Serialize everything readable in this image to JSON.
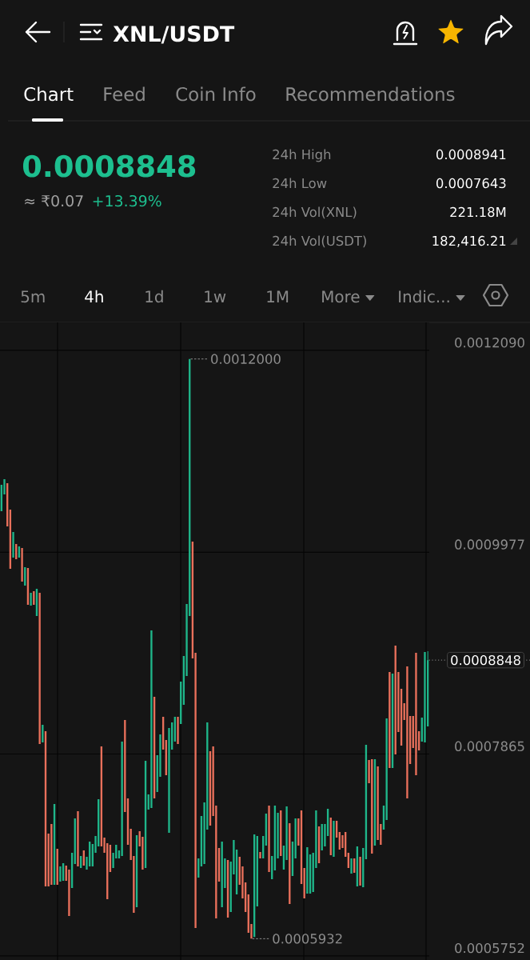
{
  "chart_data": {
    "type": "candlestick",
    "title": "XNL/USDT",
    "categories": [
      null,
      null,
      null,
      null,
      null,
      null,
      null,
      null,
      null,
      null,
      null,
      null,
      null,
      null,
      null,
      null,
      null,
      null,
      null,
      null,
      null,
      null,
      null,
      null,
      null,
      null,
      null,
      null,
      null,
      null,
      null,
      null,
      null,
      null,
      null,
      null,
      null,
      null,
      null,
      null,
      null,
      null,
      null,
      null,
      null,
      null,
      null,
      null,
      null,
      null,
      null,
      null,
      null,
      null,
      null,
      null,
      null,
      null,
      null,
      null,
      null,
      null,
      null,
      null,
      null,
      null,
      null,
      null,
      null,
      null,
      null,
      null,
      null,
      null,
      null,
      null,
      null,
      null,
      null,
      null,
      null,
      null,
      null,
      null,
      null,
      null,
      null,
      null,
      null,
      null,
      null,
      null,
      null,
      null,
      null,
      null,
      null,
      null,
      null,
      null,
      null,
      null,
      null,
      null,
      null,
      null,
      null,
      null,
      null,
      null,
      null,
      null,
      null,
      null,
      null,
      null,
      null,
      null,
      null,
      null,
      null,
      null,
      null,
      null,
      null,
      null,
      null,
      null,
      null,
      null,
      null,
      null,
      null,
      null,
      null,
      null,
      null,
      null,
      null,
      null,
      null,
      null,
      null,
      null,
      null,
      null
    ],
    "ohlc": [
      [
        0.0010407,
        0.0010683,
        0.0010407,
        0.0010683
      ],
      [
        0.0010583,
        0.0010742,
        0.0010583,
        0.0010742
      ],
      [
        0.00107,
        0.00107,
        0.0010248,
        0.0010248
      ],
      [
        0.0010424,
        0.0010424,
        0.0009804,
        0.0009804
      ],
      [
        0.0009921,
        0.0010189,
        0.0009921,
        0.0010189
      ],
      [
        0.0010063,
        0.0010063,
        0.0009904,
        0.0009904
      ],
      [
        0.0009921,
        0.0010038,
        0.0009921,
        0.0010038
      ],
      [
        0.0010022,
        0.0010022,
        0.000967,
        0.000967
      ],
      [
        0.0009628,
        0.0009821,
        0.0009628,
        0.0009821
      ],
      [
        0.0009812,
        0.0009812,
        0.0009427,
        0.0009427
      ],
      [
        0.0009419,
        0.0009553,
        0.0009419,
        0.0009553
      ],
      [
        0.0009569,
        0.0009569,
        0.0009427,
        0.0009427
      ],
      [
        0.000931,
        0.0009595,
        0.000931,
        0.0009595
      ],
      [
        0.0009553,
        0.0009553,
        0.000797,
        0.000797
      ],
      [
        0.0007987,
        0.0008171,
        0.0007987,
        0.0008171
      ],
      [
        0.0008104,
        0.0008104,
        0.0006479,
        0.0006479
      ],
      [
        0.0007032,
        0.0007032,
        0.0006479,
        0.0006479
      ],
      [
        0.0007133,
        0.0007133,
        0.0006496,
        0.0006496
      ],
      [
        0.0006496,
        0.0007342,
        0.0006496,
        0.0007342
      ],
      [
        0.0006873,
        0.0006873,
        0.0006496,
        0.0006496
      ],
      [
        0.000653,
        0.0006689,
        0.000653,
        0.0006689
      ],
      [
        0.0006538,
        0.0006722,
        0.0006538,
        0.0006722
      ],
      [
        0.0006697,
        0.0006697,
        0.0006538,
        0.0006538
      ],
      [
        0.0006655,
        0.0006655,
        0.000617,
        0.000617
      ],
      [
        0.0006463,
        0.0006831,
        0.0006463,
        0.0006831
      ],
      [
        0.0006714,
        0.0007191,
        0.0006714,
        0.0007191
      ],
      [
        0.0007267,
        0.0007267,
        0.0006689,
        0.0006689
      ],
      [
        0.0006672,
        0.0006798,
        0.0006672,
        0.0006798
      ],
      [
        0.0006856,
        0.0006856,
        0.0006697,
        0.0006697
      ],
      [
        0.0006655,
        0.0006789,
        0.0006655,
        0.0006789
      ],
      [
        0.0006689,
        0.0006948,
        0.0006689,
        0.0006948
      ],
      [
        0.0006689,
        0.0006923,
        0.0006689,
        0.0006923
      ],
      [
        0.0006831,
        0.0007007,
        0.0006831,
        0.0007007
      ],
      [
        0.0006898,
        0.0007392,
        0.0006898,
        0.0007392
      ],
      [
        0.0007945,
        0.0007945,
        0.0006898,
        0.0006898
      ],
      [
        0.000699,
        0.000699,
        0.0006831,
        0.0006831
      ],
      [
        0.0006932,
        0.0006932,
        0.0006345,
        0.0006345
      ],
      [
        0.0006915,
        0.0006915,
        0.000663,
        0.000663
      ],
      [
        0.0006672,
        0.0006831,
        0.0006672,
        0.0006831
      ],
      [
        0.0006772,
        0.0006915,
        0.0006772,
        0.0006915
      ],
      [
        0.0006772,
        0.0006856,
        0.0006772,
        0.0006856
      ],
      [
        0.0006798,
        0.0007995,
        0.0006798,
        0.0007995
      ],
      [
        0.0008221,
        0.0008221,
        0.0007258,
        0.0007258
      ],
      [
        0.00074,
        0.00074,
        0.0006915,
        0.0006915
      ],
      [
        0.0007082,
        0.0007082,
        0.0006756,
        0.0006756
      ],
      [
        0.0006798,
        0.0006798,
        0.0006203,
        0.0006203
      ],
      [
        0.0006262,
        0.0007015,
        0.0006262,
        0.0007015
      ],
      [
        0.0007057,
        0.0007057,
        0.0006898,
        0.0006898
      ],
      [
        0.0006999,
        0.0006999,
        0.0006655,
        0.0006655
      ],
      [
        0.0006672,
        0.0007794,
        0.0006672,
        0.0007794
      ],
      [
        0.0007283,
        0.0007442,
        0.0007283,
        0.0007442
      ],
      [
        0.00073,
        0.0009159,
        0.00073,
        0.0009159
      ],
      [
        0.0008464,
        0.0008464,
        0.00074,
        0.00074
      ],
      [
        0.0007468,
        0.0007853,
        0.0007468,
        0.0007853
      ],
      [
        0.0007627,
        0.000807,
        0.0007627,
        0.000807
      ],
      [
        0.0008255,
        0.0008255,
        0.0007911,
        0.0007911
      ],
      [
        0.0008012,
        0.0008012,
        0.0007643,
        0.0007643
      ],
      [
        0.000704,
        0.0008138,
        0.000704,
        0.0008138
      ],
      [
        0.0007911,
        0.0008196,
        0.0007911,
        0.0008196
      ],
      [
        0.0007995,
        0.0008255,
        0.0007995,
        0.0008255
      ],
      [
        0.0008255,
        0.0008255,
        0.000797,
        0.000797
      ],
      [
        0.0008179,
        0.0008623,
        0.0008179,
        0.0008623
      ],
      [
        0.000838,
        0.0008891,
        0.000838,
        0.0008891
      ],
      [
        0.0008682,
        0.0009435,
        0.0008682,
        0.0009435
      ],
      [
        0.000931,
        0.0012,
        0.000931,
        0.0012
      ],
      [
        0.0010089,
        0.0010089,
        0.0008866,
        0.0008866
      ],
      [
        0.0008925,
        0.0008925,
        0.0006044,
        0.0006044
      ],
      [
        0.0006572,
        0.0006772,
        0.0006572,
        0.0006772
      ],
      [
        0.0006689,
        0.0007216,
        0.0006689,
        0.0007216
      ],
      [
        0.0006714,
        0.0007359,
        0.0006714,
        0.0007359
      ],
      [
        0.0007074,
        0.0008196,
        0.0007074,
        0.0008196
      ],
      [
        0.0007895,
        0.0007895,
        0.0007116,
        0.0007116
      ],
      [
        0.0007945,
        0.0007945,
        0.0007216,
        0.0007216
      ],
      [
        0.0007325,
        0.0007325,
        0.0006144,
        0.0006144
      ],
      [
        0.0006881,
        0.0006881,
        0.000653,
        0.000653
      ],
      [
        0.0006262,
        0.0006948,
        0.0006262,
        0.0006948
      ],
      [
        0.0006463,
        0.0006772,
        0.0006463,
        0.0006772
      ],
      [
        0.0006756,
        0.0006756,
        0.0006153,
        0.0006153
      ],
      [
        0.0006211,
        0.0006739,
        0.0006211,
        0.0006739
      ],
      [
        0.0006605,
        0.0006965,
        0.0006605,
        0.0006965
      ],
      [
        0.0006396,
        0.0006865,
        0.0006396,
        0.0006865
      ],
      [
        0.0006789,
        0.0006789,
        0.0006496,
        0.0006496
      ],
      [
        0.0006689,
        0.0006689,
        0.0006354,
        0.0006354
      ],
      [
        0.0006521,
        0.0006521,
        0.0006211,
        0.0006211
      ],
      [
        0.0006396,
        0.0006396,
        0.0005994,
        0.0005994
      ],
      [
        0.0006086,
        0.0006086,
        0.0005932,
        0.0005932
      ],
      [
        0.000595,
        0.0007024,
        0.000595,
        0.0007024
      ],
      [
        0.000627,
        0.0007007,
        0.000627,
        0.0007007
      ],
      [
        0.000684,
        0.000684,
        0.0006772,
        0.0006772
      ],
      [
        0.0006772,
        0.0007007,
        0.0006772,
        0.0007007
      ],
      [
        0.0006907,
        0.0007241,
        0.0006907,
        0.0007241
      ],
      [
        0.0007325,
        0.0007325,
        0.000663,
        0.000663
      ],
      [
        0.0006555,
        0.0006798,
        0.0006555,
        0.0006798
      ],
      [
        0.0006647,
        0.0007325,
        0.0006647,
        0.0007325
      ],
      [
        0.0006772,
        0.000725,
        0.0006772,
        0.000725
      ],
      [
        0.0007275,
        0.0007275,
        0.0006798,
        0.0006798
      ],
      [
        0.0006655,
        0.0006907,
        0.0006655,
        0.0006907
      ],
      [
        0.0006756,
        0.0007317,
        0.0006756,
        0.0007317
      ],
      [
        0.0007141,
        0.0007141,
        0.0006295,
        0.0006295
      ],
      [
        0.0006588,
        0.0006948,
        0.0006588,
        0.0006948
      ],
      [
        0.0006772,
        0.0007191,
        0.0006772,
        0.0007191
      ],
      [
        0.0007191,
        0.0007191,
        0.0006907,
        0.0006907
      ],
      [
        0.0007275,
        0.0007275,
        0.0006505,
        0.0006505
      ],
      [
        0.0006672,
        0.0006672,
        0.0006354,
        0.0006354
      ],
      [
        0.0006404,
        0.000689,
        0.0006404,
        0.000689
      ],
      [
        0.0006404,
        0.0006814,
        0.0006404,
        0.0006814
      ],
      [
        0.0006421,
        0.0006831,
        0.0006421,
        0.0006831
      ],
      [
        0.0006672,
        0.0007275,
        0.0006672,
        0.0007275
      ],
      [
        0.0007108,
        0.0007108,
        0.0006722,
        0.0006722
      ],
      [
        0.0006856,
        0.0007133,
        0.0006856,
        0.0007133
      ],
      [
        0.0006898,
        0.0007133,
        0.0006898,
        0.0007133
      ],
      [
        0.0007007,
        0.0007292,
        0.0007007,
        0.0007292
      ],
      [
        0.00072,
        0.00072,
        0.0006806,
        0.0006806
      ],
      [
        0.0006789,
        0.0007166,
        0.0006789,
        0.0007166
      ],
      [
        0.0007166,
        0.0007166,
        0.000699,
        0.000699
      ],
      [
        0.0007049,
        0.0007049,
        0.0006865,
        0.0006865
      ],
      [
        0.0007015,
        0.0007015,
        0.0006881,
        0.0006881
      ],
      [
        0.0007049,
        0.0007049,
        0.0006789,
        0.0006789
      ],
      [
        0.0006831,
        0.0006831,
        0.0006672,
        0.0006672
      ],
      [
        0.0006613,
        0.0006772,
        0.0006613,
        0.0006772
      ],
      [
        0.0006772,
        0.0006772,
        0.0006622,
        0.0006622
      ],
      [
        0.0006479,
        0.0006898,
        0.0006479,
        0.0006898
      ],
      [
        0.0006789,
        0.0006789,
        0.0006488,
        0.0006488
      ],
      [
        0.0006471,
        0.0006881,
        0.0006471,
        0.0006881
      ],
      [
        0.0006764,
        0.0007962,
        0.0006764,
        0.0007962
      ],
      [
        0.0007803,
        0.0007803,
        0.000756,
        0.000756
      ],
      [
        0.0007811,
        0.0007811,
        0.0006823,
        0.0006823
      ],
      [
        0.0006907,
        0.0007811,
        0.0006907,
        0.0007811
      ],
      [
        0.0007736,
        0.0007736,
        0.0006965,
        0.0006965
      ],
      [
        0.0007133,
        0.0007133,
        0.0006915,
        0.0006915
      ],
      [
        0.0007074,
        0.0007325,
        0.0007074,
        0.0007325
      ],
      [
        0.0007174,
        0.0008238,
        0.0007174,
        0.0008238
      ],
      [
        0.0008724,
        0.0008724,
        0.0007719,
        0.0007719
      ],
      [
        0.0007719,
        0.0008707,
        0.0007719,
        0.0008707
      ],
      [
        0.0009,
        0.0009,
        0.0007861,
        0.0007861
      ],
      [
        0.0008724,
        0.0008724,
        0.0008096,
        0.0008096
      ],
      [
        0.0008548,
        0.0008548,
        0.0007953,
        0.0007953
      ],
      [
        0.0008397,
        0.0008397,
        0.0008221,
        0.0008221
      ],
      [
        0.0008782,
        0.0008782,
        0.00074,
        0.00074
      ],
      [
        0.0008263,
        0.0008263,
        0.0007761,
        0.0007761
      ],
      [
        0.0008263,
        0.0008263,
        0.0007928,
        0.0007928
      ],
      [
        0.0008925,
        0.0008925,
        0.0007643,
        0.0007643
      ],
      [
        0.0008104,
        0.0008104,
        0.0007903,
        0.0007903
      ],
      [
        0.0007995,
        0.0008246,
        0.0007995,
        0.0008246
      ],
      [
        0.0007987,
        0.0008933,
        0.0007987,
        0.0008933
      ],
      [
        0.0008154,
        0.0008941,
        0.0008154,
        0.0008848
      ]
    ],
    "colors": [
      "#1fb68a",
      "#1fb68a",
      "#e9705b",
      "#e9705b",
      "#1fb68a",
      "#e9705b",
      "#1fb68a",
      "#e9705b",
      "#1fb68a",
      "#e9705b",
      "#1fb68a",
      "#e9705b",
      "#1fb68a",
      "#e9705b",
      "#1fb68a",
      "#e9705b",
      "#e9705b",
      "#e9705b",
      "#1fb68a",
      "#e9705b",
      "#1fb68a",
      "#1fb68a",
      "#e9705b",
      "#e9705b",
      "#1fb68a",
      "#1fb68a",
      "#e9705b",
      "#1fb68a",
      "#e9705b",
      "#1fb68a",
      "#1fb68a",
      "#1fb68a",
      "#1fb68a",
      "#1fb68a",
      "#e9705b",
      "#e9705b",
      "#e9705b",
      "#e9705b",
      "#1fb68a",
      "#1fb68a",
      "#1fb68a",
      "#1fb68a",
      "#e9705b",
      "#e9705b",
      "#e9705b",
      "#e9705b",
      "#1fb68a",
      "#e9705b",
      "#e9705b",
      "#1fb68a",
      "#1fb68a",
      "#1fb68a",
      "#e9705b",
      "#1fb68a",
      "#1fb68a",
      "#e9705b",
      "#e9705b",
      "#1fb68a",
      "#1fb68a",
      "#1fb68a",
      "#e9705b",
      "#1fb68a",
      "#1fb68a",
      "#1fb68a",
      "#1fb68a",
      "#e9705b",
      "#e9705b",
      "#1fb68a",
      "#1fb68a",
      "#1fb68a",
      "#1fb68a",
      "#e9705b",
      "#e9705b",
      "#e9705b",
      "#e9705b",
      "#1fb68a",
      "#1fb68a",
      "#e9705b",
      "#1fb68a",
      "#1fb68a",
      "#1fb68a",
      "#e9705b",
      "#e9705b",
      "#e9705b",
      "#e9705b",
      "#e9705b",
      "#1fb68a",
      "#1fb68a",
      "#e9705b",
      "#1fb68a",
      "#1fb68a",
      "#e9705b",
      "#1fb68a",
      "#1fb68a",
      "#1fb68a",
      "#e9705b",
      "#1fb68a",
      "#1fb68a",
      "#e9705b",
      "#1fb68a",
      "#1fb68a",
      "#e9705b",
      "#e9705b",
      "#e9705b",
      "#1fb68a",
      "#1fb68a",
      "#1fb68a",
      "#1fb68a",
      "#e9705b",
      "#1fb68a",
      "#1fb68a",
      "#1fb68a",
      "#e9705b",
      "#1fb68a",
      "#e9705b",
      "#e9705b",
      "#e9705b",
      "#e9705b",
      "#e9705b",
      "#1fb68a",
      "#e9705b",
      "#1fb68a",
      "#e9705b",
      "#1fb68a",
      "#1fb68a",
      "#e9705b",
      "#e9705b",
      "#1fb68a",
      "#e9705b",
      "#e9705b",
      "#1fb68a",
      "#1fb68a",
      "#e9705b",
      "#1fb68a",
      "#e9705b",
      "#e9705b",
      "#e9705b",
      "#e9705b",
      "#e9705b",
      "#e9705b",
      "#e9705b",
      "#e9705b",
      "#e9705b",
      "#1fb68a",
      "#1fb68a",
      "#1fb68a"
    ],
    "ylim": [
      0.0005709,
      0.0012383
    ],
    "yticks": [
      {
        "value": 0.001209,
        "label": "0.0012090"
      },
      0.0009977,
      0.0007865,
      0.0005752
    ],
    "grid": true,
    "ref_lines": [
      {
        "axis": "y",
        "value": 0.0008848,
        "label": "0.0008848",
        "line_style": "dotted"
      }
    ],
    "annotations": [
      "Chart",
      "Feed",
      "Coin Info",
      "Recommendations",
      "0.0008848",
      "≈ ₹0.07",
      "+13.39%",
      "24h High",
      "0.0008941",
      "24h Low",
      "0.0007643",
      "24h Vol(XNL)",
      "221.18M",
      "24h Vol(USDT)",
      "182,416.21",
      "5m",
      "4h",
      "1d",
      "1w",
      "1M",
      "More",
      "Indic...",
      "0.0012000",
      "0.0005932"
    ]
  }
}
